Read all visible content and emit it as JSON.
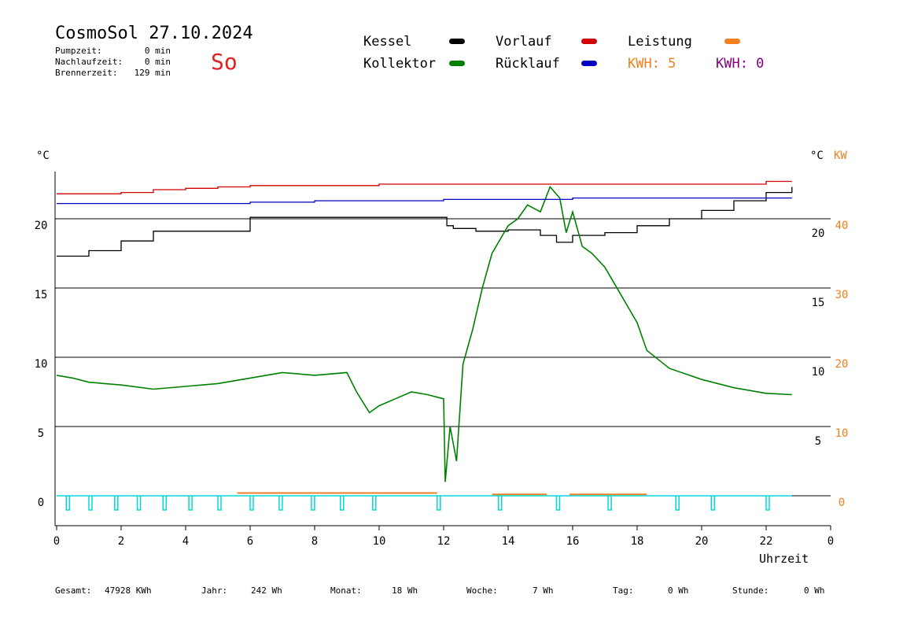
{
  "header": {
    "title": "CosmoSol 27.10.2024",
    "weekday": "So",
    "pump_label": "Pumpzeit:",
    "pump_value": "0 min",
    "nachlauf_label": "Nachlaufzeit:",
    "nachlauf_value": "0 min",
    "brenner_label": "Brennerzeit:",
    "brenner_value": "129 min"
  },
  "legend": {
    "kessel": "Kessel",
    "kollektor": "Kollektor",
    "vorlauf": "Vorlauf",
    "ruecklauf": "Rücklauf",
    "leistung": "Leistung",
    "kwh1_label": "KWH: 5",
    "kwh2_label": "KWH: 0"
  },
  "colors": {
    "kessel": "#000000",
    "kollektor": "#008000",
    "vorlauf": "#d00000",
    "ruecklauf": "#0000c0",
    "leistung": "#f08020",
    "kwh2": "#800080",
    "pump": "#00d8d8",
    "weekday": "#e02020"
  },
  "axes": {
    "ylabel_left": "°C",
    "ylabel_right": "°C",
    "ylabel_right2": "KW",
    "xlabel": "Uhrzeit"
  },
  "footer": {
    "gesamt_label": "Gesamt:",
    "gesamt_value": "47928 KWh",
    "jahr_label": "Jahr:",
    "jahr_value": "242 Wh",
    "monat_label": "Monat:",
    "monat_value": "18 Wh",
    "woche_label": "Woche:",
    "woche_value": "7 Wh",
    "tag_label": "Tag:",
    "tag_value": "0 Wh",
    "stunde_label": "Stunde:",
    "stunde_value": "0 Wh"
  },
  "chart_data": {
    "type": "line",
    "x_unit": "hour",
    "xlim": [
      0,
      24
    ],
    "x_ticks": [
      "0",
      "2",
      "4",
      "6",
      "8",
      "10",
      "12",
      "14",
      "16",
      "18",
      "20",
      "22",
      "0"
    ],
    "y_left_ticks": [
      "0",
      "5",
      "10",
      "15",
      "20"
    ],
    "y_right_ticks": [
      "5",
      "10",
      "15",
      "20"
    ],
    "y_right2_ticks": [
      "0",
      "10",
      "20",
      "30",
      "40"
    ],
    "ylim": [
      -2,
      24
    ],
    "grid": "horizontal",
    "series": [
      {
        "name": "Kessel",
        "x": [
          0,
          1,
          2,
          3,
          4,
          5,
          6,
          6.2,
          12,
          12.1,
          12.3,
          13,
          14,
          15,
          15.5,
          16,
          17,
          18,
          19,
          20,
          21,
          22,
          22.8
        ],
        "y": [
          17.3,
          17.7,
          18.4,
          19.1,
          19.1,
          19.1,
          20.1,
          20.1,
          20.1,
          19.5,
          19.3,
          19.1,
          19.2,
          18.8,
          18.3,
          18.8,
          19.0,
          19.5,
          20.0,
          20.6,
          21.3,
          21.9,
          22.3
        ]
      },
      {
        "name": "Kollektor",
        "x": [
          0,
          0.5,
          1,
          2,
          3,
          4,
          5,
          6,
          6.5,
          7,
          8,
          9,
          9.3,
          9.7,
          10,
          10.5,
          11,
          11.5,
          12,
          12.05,
          12.2,
          12.4,
          12.6,
          12.9,
          13.2,
          13.5,
          14,
          14.3,
          14.6,
          15,
          15.3,
          15.6,
          15.8,
          16,
          16.3,
          16.6,
          17,
          17.5,
          18,
          18.3,
          19,
          20,
          21,
          22,
          22.8
        ],
        "y": [
          8.7,
          8.5,
          8.2,
          8.0,
          7.7,
          7.9,
          8.1,
          8.5,
          8.7,
          8.9,
          8.7,
          8.9,
          7.5,
          6.0,
          6.5,
          7.0,
          7.5,
          7.3,
          7.0,
          1.0,
          5.0,
          2.5,
          9.5,
          12.0,
          15.0,
          17.5,
          19.5,
          20.0,
          21.0,
          20.5,
          22.3,
          21.5,
          19.0,
          20.5,
          18.0,
          17.5,
          16.5,
          14.5,
          12.5,
          10.5,
          9.2,
          8.4,
          7.8,
          7.4,
          7.3
        ]
      },
      {
        "name": "Vorlauf",
        "x": [
          0,
          1,
          2,
          3,
          4,
          5,
          6,
          10,
          14,
          18,
          22,
          22.8
        ],
        "y": [
          21.8,
          21.8,
          21.9,
          22.1,
          22.2,
          22.3,
          22.4,
          22.5,
          22.5,
          22.5,
          22.7,
          22.7
        ]
      },
      {
        "name": "Rücklauf",
        "x": [
          0,
          2,
          4,
          6,
          8,
          10,
          12,
          14,
          16,
          18,
          20,
          22,
          22.8
        ],
        "y": [
          21.1,
          21.1,
          21.1,
          21.2,
          21.3,
          21.3,
          21.4,
          21.4,
          21.5,
          21.5,
          21.5,
          21.5,
          21.5
        ]
      }
    ],
    "leistung_segments": [
      {
        "x0": 5.6,
        "x1": 11.8,
        "y": 0.2
      },
      {
        "x0": 13.5,
        "x1": 15.2,
        "y": 0.1
      },
      {
        "x0": 15.9,
        "x1": 18.3,
        "y": 0.1
      }
    ],
    "pump_pulses": [
      0.3,
      1.0,
      1.8,
      2.5,
      3.3,
      4.1,
      5.0,
      6.0,
      6.9,
      7.9,
      8.8,
      9.8,
      11.8,
      13.7,
      15.5,
      17.1,
      19.2,
      20.3,
      22.0
    ]
  }
}
